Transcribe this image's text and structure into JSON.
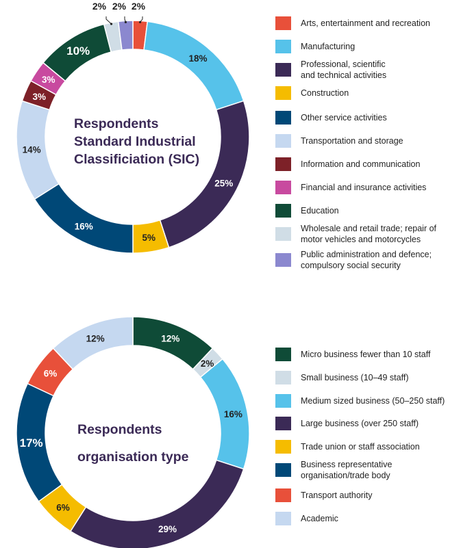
{
  "chart_data": [
    {
      "type": "pie",
      "title": "Respondents\nStandard Industrial\nClassificiation (SIC)",
      "categories": [
        "Arts, entertainment and recreation",
        "Manufacturing",
        "Professional, scientific\nand technical activities",
        "Construction",
        "Other service activities",
        "Transportation and storage",
        "Information and communication",
        "Financial and insurance activities",
        "Education",
        "Wholesale and retail trade; repair of\nmotor vehicles and motorcycles",
        "Public administration and defence;\ncompulsory social security"
      ],
      "values": [
        2,
        18,
        25,
        5,
        16,
        14,
        3,
        3,
        10,
        2,
        2
      ],
      "labels": [
        "2%",
        "18%",
        "25%",
        "5%",
        "16%",
        "14%",
        "3%",
        "3%",
        "10%",
        "2%",
        "2%"
      ],
      "colors": [
        "#e8503a",
        "#56c2ea",
        "#3b2a56",
        "#f5bc00",
        "#004877",
        "#c5d8f0",
        "#7d2128",
        "#c84a9f",
        "#0f4b37",
        "#d0dde6",
        "#8b88cf"
      ],
      "legend": "right"
    },
    {
      "type": "pie",
      "title": "Respondents\norganisation type",
      "categories": [
        "Micro business fewer than 10 staff",
        "Small business (10–49 staff)",
        "Medium sized business (50–250 staff)",
        "Large business (over 250 staff)",
        "Trade union or staff association",
        "Business representative\norganisation/trade body",
        "Transport authority",
        "Academic"
      ],
      "values": [
        12,
        2,
        16,
        29,
        6,
        17,
        6,
        12
      ],
      "labels": [
        "12%",
        "2%",
        "16%",
        "29%",
        "6%",
        "17%",
        "6%",
        "12%"
      ],
      "colors": [
        "#0f4b37",
        "#d0dde6",
        "#56c2ea",
        "#3b2a56",
        "#f5bc00",
        "#004877",
        "#e8503a",
        "#c5d8f0"
      ],
      "legend": "right"
    }
  ]
}
